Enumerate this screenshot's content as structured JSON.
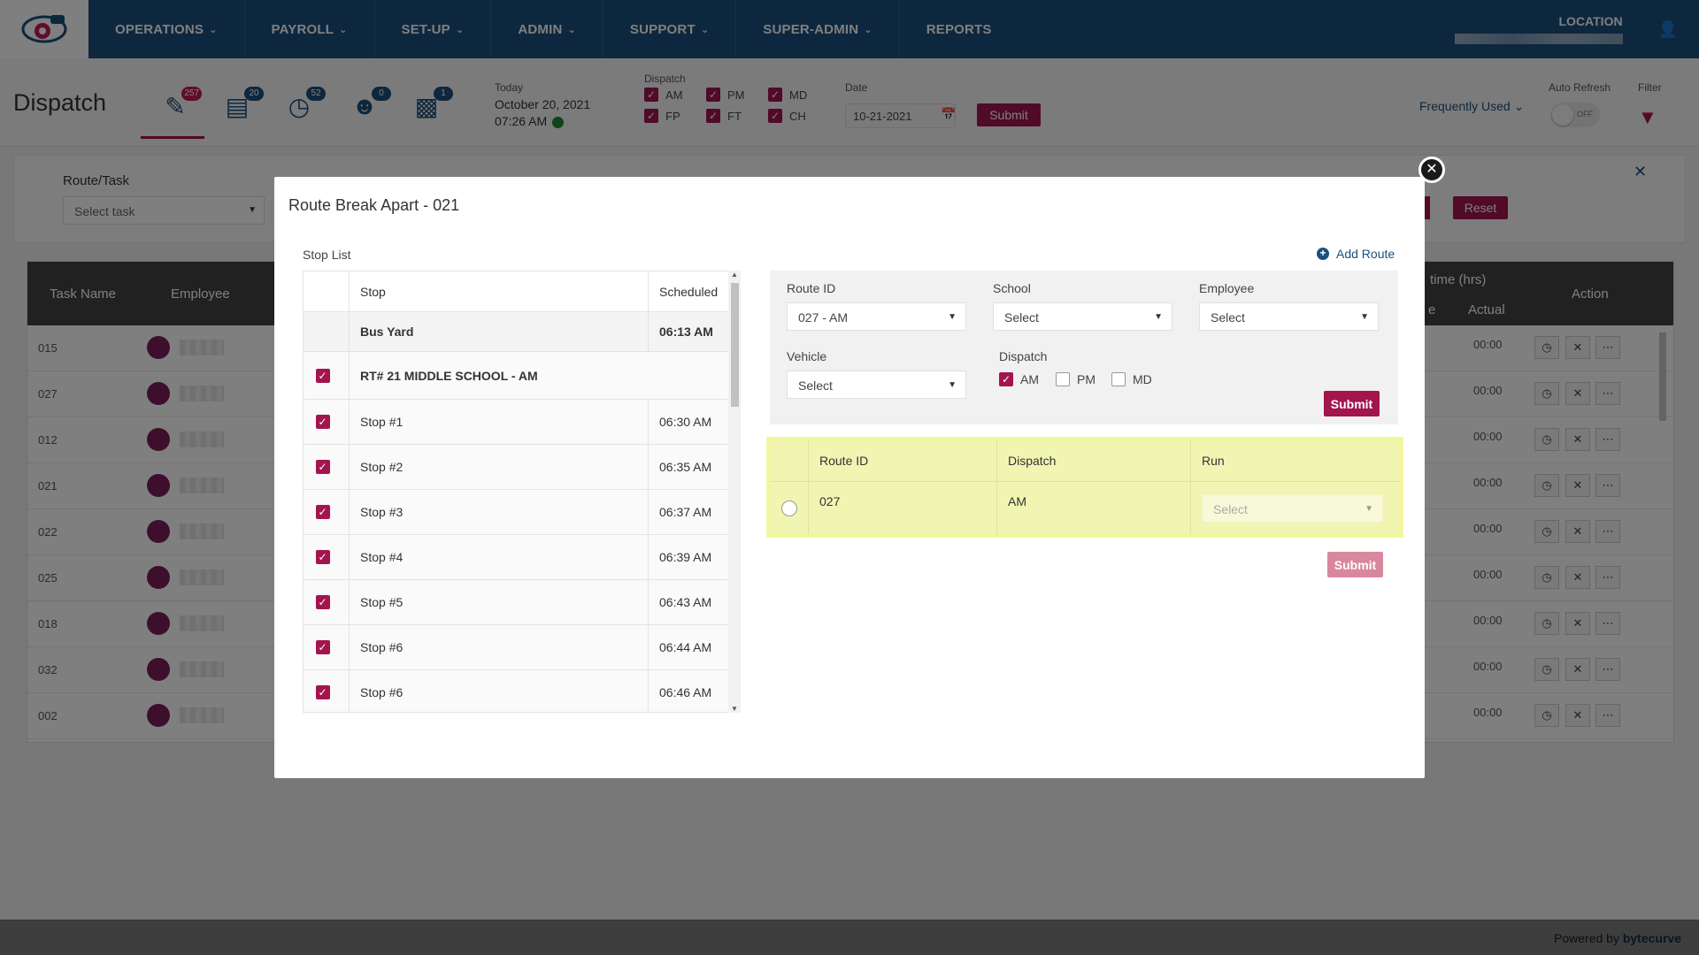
{
  "nav": {
    "items": [
      "OPERATIONS",
      "PAYROLL",
      "SET-UP",
      "ADMIN",
      "SUPPORT",
      "SUPER-ADMIN",
      "REPORTS"
    ],
    "location_label": "LOCATION"
  },
  "header": {
    "title": "Dispatch",
    "badges": [
      "257",
      "20",
      "52",
      "0",
      "1"
    ],
    "today_label": "Today",
    "today_date": "October 20, 2021",
    "today_time": "07:26 AM",
    "dispatch_label": "Dispatch",
    "dispatch_options": [
      "AM",
      "PM",
      "MD",
      "FP",
      "FT",
      "CH"
    ],
    "date_label": "Date",
    "date_value": "10-21-2021",
    "submit_label": "Submit",
    "frequently_used": "Frequently Used",
    "auto_refresh_label": "Auto Refresh",
    "toggle_text": "OFF",
    "filter_label": "Filter"
  },
  "filter_panel": {
    "route_task_label": "Route/Task",
    "route_task_placeholder": "Select task",
    "reset_label": "Reset"
  },
  "bg_table": {
    "headers": [
      "Task Name",
      "Employee",
      "time (hrs)",
      "e",
      "Actual",
      "Action"
    ],
    "rows": [
      {
        "task": "015",
        "actual": "00:00"
      },
      {
        "task": "027",
        "actual": "00:00"
      },
      {
        "task": "012",
        "actual": "00:00"
      },
      {
        "task": "021",
        "actual": "00:00"
      },
      {
        "task": "022",
        "actual": "00:00"
      },
      {
        "task": "025",
        "actual": "00:00"
      },
      {
        "task": "018",
        "actual": "00:00"
      },
      {
        "task": "032",
        "actual": "00:00"
      },
      {
        "task": "002",
        "actual": "00:00"
      }
    ]
  },
  "modal": {
    "title": "Route Break Apart - 021",
    "stop_list_label": "Stop List",
    "stop_table": {
      "col_stop": "Stop",
      "col_scheduled": "Scheduled",
      "rows": [
        {
          "stop": "Bus Yard",
          "scheduled": "06:13 AM",
          "checked": false,
          "bold": true
        },
        {
          "stop": "RT# 21 MIDDLE SCHOOL - AM",
          "scheduled": "",
          "checked": true,
          "bold": true
        },
        {
          "stop": "Stop #1",
          "scheduled": "06:30 AM",
          "checked": true,
          "bold": false
        },
        {
          "stop": "Stop #2",
          "scheduled": "06:35 AM",
          "checked": true,
          "bold": false
        },
        {
          "stop": "Stop #3",
          "scheduled": "06:37 AM",
          "checked": true,
          "bold": false
        },
        {
          "stop": "Stop #4",
          "scheduled": "06:39 AM",
          "checked": true,
          "bold": false
        },
        {
          "stop": "Stop #5",
          "scheduled": "06:43 AM",
          "checked": true,
          "bold": false
        },
        {
          "stop": "Stop #6",
          "scheduled": "06:44 AM",
          "checked": true,
          "bold": false
        },
        {
          "stop": "Stop #6",
          "scheduled": "06:46 AM",
          "checked": true,
          "bold": false
        }
      ]
    },
    "add_route_label": "Add Route",
    "form": {
      "route_id_label": "Route ID",
      "route_id_value": "027 - AM",
      "school_label": "School",
      "school_value": "Select",
      "employee_label": "Employee",
      "employee_value": "Select",
      "vehicle_label": "Vehicle",
      "vehicle_value": "Select",
      "dispatch_label": "Dispatch",
      "dispatch_am": "AM",
      "dispatch_pm": "PM",
      "dispatch_md": "MD",
      "submit_label": "Submit"
    },
    "result_table": {
      "col_route_id": "Route ID",
      "col_dispatch": "Dispatch",
      "col_run": "Run",
      "row_route_id": "027",
      "row_dispatch": "AM",
      "row_run_placeholder": "Select"
    },
    "result_submit_label": "Submit"
  },
  "footer": {
    "powered_by": "Powered by",
    "brand": "bytecurve"
  },
  "colors": {
    "nav_bg": "#1b4f7c",
    "accent": "#a3154e",
    "highlight": "#f0f5b2"
  }
}
